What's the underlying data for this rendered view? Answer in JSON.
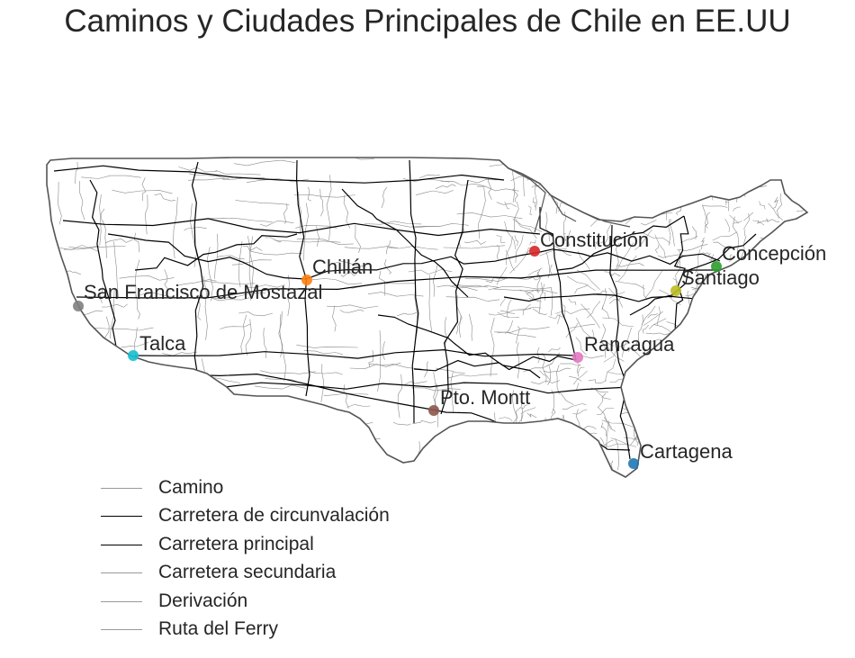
{
  "title": "Caminos y Ciudades Principales de Chile en EE.UU",
  "cities": [
    {
      "name": "Constitución",
      "color": "#d62728"
    },
    {
      "name": "Concepción",
      "color": "#2ca02c"
    },
    {
      "name": "Santiago",
      "color": "#bcbd22"
    },
    {
      "name": "Chillán",
      "color": "#ff7f0e"
    },
    {
      "name": "San Francisco de Mostazal",
      "color": "#7f7f7f"
    },
    {
      "name": "Talca",
      "color": "#17becf"
    },
    {
      "name": "Rancagua",
      "color": "#e377c2"
    },
    {
      "name": "Pto. Montt",
      "color": "#8c564b"
    },
    {
      "name": "Cartagena",
      "color": "#1f77b4"
    }
  ],
  "legend": [
    {
      "label": "Camino",
      "color": "#9a9a9a"
    },
    {
      "label": "Carretera de circunvalación",
      "color": "#000000"
    },
    {
      "label": "Carretera principal",
      "color": "#000000"
    },
    {
      "label": "Carretera secundaria",
      "color": "#9a9a9a"
    },
    {
      "label": "Derivación",
      "color": "#9a9a9a"
    },
    {
      "label": "Ruta del Ferry",
      "color": "#9a9a9a"
    }
  ],
  "styles": {
    "outline_color": "#555555",
    "minor_road_color": "#8a8a8a",
    "major_road_color": "#000000"
  }
}
